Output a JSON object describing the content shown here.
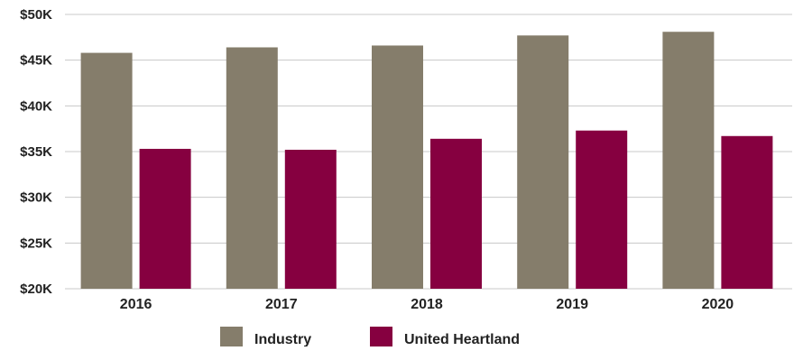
{
  "chart_data": {
    "type": "bar",
    "title": "",
    "xlabel": "",
    "ylabel": "",
    "categories": [
      "2016",
      "2017",
      "2018",
      "2019",
      "2020"
    ],
    "series": [
      {
        "name": "Industry",
        "color": "#857d6b",
        "values": [
          45800,
          46400,
          46600,
          47700,
          48100
        ]
      },
      {
        "name": "United Heartland",
        "color": "#860040",
        "values": [
          35300,
          35200,
          36400,
          37300,
          36700
        ]
      }
    ],
    "ylim": [
      20000,
      50000
    ],
    "yticks": [
      {
        "value": 20000,
        "label": "$20K"
      },
      {
        "value": 25000,
        "label": "$25K"
      },
      {
        "value": 30000,
        "label": "$30K"
      },
      {
        "value": 35000,
        "label": "$35K"
      },
      {
        "value": 40000,
        "label": "$40K"
      },
      {
        "value": 45000,
        "label": "$45K"
      },
      {
        "value": 50000,
        "label": "$50K"
      }
    ],
    "grid": true,
    "gridline_color": "#c8c8c8",
    "legend_position": "bottom-center"
  }
}
